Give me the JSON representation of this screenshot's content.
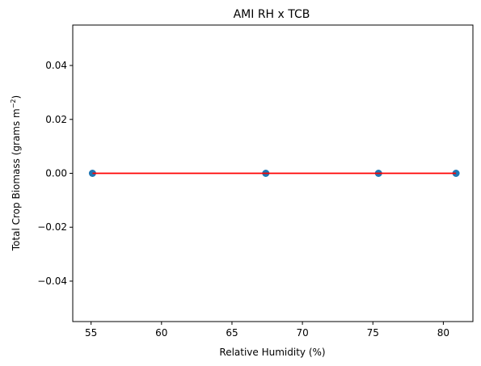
{
  "chart_data": {
    "type": "scatter",
    "title": "AMI RH x TCB",
    "xlabel": "Relative Humidity (%)",
    "ylabel_main": "Total Crop Biomass (grams m",
    "ylabel_sup": "−2",
    "ylabel_end": ")",
    "xlim": [
      53.7,
      82.1
    ],
    "ylim": [
      -0.055,
      0.055
    ],
    "xticks": [
      55,
      60,
      65,
      70,
      75,
      80
    ],
    "yticks": [
      -0.04,
      -0.02,
      0.0,
      0.02,
      0.04
    ],
    "xtick_labels": [
      "55",
      "60",
      "65",
      "70",
      "75",
      "80"
    ],
    "ytick_labels": [
      "−0.04",
      "−0.02",
      "0.00",
      "0.02",
      "0.04"
    ],
    "points": {
      "x": [
        55.1,
        67.4,
        75.4,
        80.9
      ],
      "y": [
        0,
        0,
        0,
        0
      ]
    },
    "fit_line": {
      "x": [
        55.1,
        80.9
      ],
      "y": [
        0,
        0
      ]
    },
    "point_color": "#1f77b4",
    "line_color": "#ff0000",
    "grid": false,
    "legend": false
  }
}
